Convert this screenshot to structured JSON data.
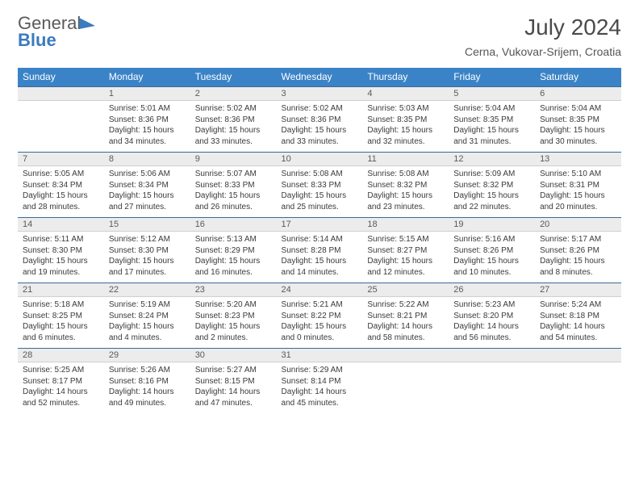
{
  "logo": {
    "line1": "General",
    "line2": "Blue"
  },
  "title": "July 2024",
  "location": "Cerna, Vukovar-Srijem, Croatia",
  "colors": {
    "header_bg": "#3b83c7",
    "header_text": "#ffffff",
    "daynum_bg": "#ececec",
    "border_top": "#3b6a94",
    "text": "#3a3a3a",
    "logo_blue": "#3b7bbf",
    "logo_gray": "#5a5a5a"
  },
  "dow": [
    "Sunday",
    "Monday",
    "Tuesday",
    "Wednesday",
    "Thursday",
    "Friday",
    "Saturday"
  ],
  "weeks": [
    {
      "nums": [
        "",
        "1",
        "2",
        "3",
        "4",
        "5",
        "6"
      ],
      "cells": [
        "",
        "Sunrise: 5:01 AM\nSunset: 8:36 PM\nDaylight: 15 hours and 34 minutes.",
        "Sunrise: 5:02 AM\nSunset: 8:36 PM\nDaylight: 15 hours and 33 minutes.",
        "Sunrise: 5:02 AM\nSunset: 8:36 PM\nDaylight: 15 hours and 33 minutes.",
        "Sunrise: 5:03 AM\nSunset: 8:35 PM\nDaylight: 15 hours and 32 minutes.",
        "Sunrise: 5:04 AM\nSunset: 8:35 PM\nDaylight: 15 hours and 31 minutes.",
        "Sunrise: 5:04 AM\nSunset: 8:35 PM\nDaylight: 15 hours and 30 minutes."
      ]
    },
    {
      "nums": [
        "7",
        "8",
        "9",
        "10",
        "11",
        "12",
        "13"
      ],
      "cells": [
        "Sunrise: 5:05 AM\nSunset: 8:34 PM\nDaylight: 15 hours and 28 minutes.",
        "Sunrise: 5:06 AM\nSunset: 8:34 PM\nDaylight: 15 hours and 27 minutes.",
        "Sunrise: 5:07 AM\nSunset: 8:33 PM\nDaylight: 15 hours and 26 minutes.",
        "Sunrise: 5:08 AM\nSunset: 8:33 PM\nDaylight: 15 hours and 25 minutes.",
        "Sunrise: 5:08 AM\nSunset: 8:32 PM\nDaylight: 15 hours and 23 minutes.",
        "Sunrise: 5:09 AM\nSunset: 8:32 PM\nDaylight: 15 hours and 22 minutes.",
        "Sunrise: 5:10 AM\nSunset: 8:31 PM\nDaylight: 15 hours and 20 minutes."
      ]
    },
    {
      "nums": [
        "14",
        "15",
        "16",
        "17",
        "18",
        "19",
        "20"
      ],
      "cells": [
        "Sunrise: 5:11 AM\nSunset: 8:30 PM\nDaylight: 15 hours and 19 minutes.",
        "Sunrise: 5:12 AM\nSunset: 8:30 PM\nDaylight: 15 hours and 17 minutes.",
        "Sunrise: 5:13 AM\nSunset: 8:29 PM\nDaylight: 15 hours and 16 minutes.",
        "Sunrise: 5:14 AM\nSunset: 8:28 PM\nDaylight: 15 hours and 14 minutes.",
        "Sunrise: 5:15 AM\nSunset: 8:27 PM\nDaylight: 15 hours and 12 minutes.",
        "Sunrise: 5:16 AM\nSunset: 8:26 PM\nDaylight: 15 hours and 10 minutes.",
        "Sunrise: 5:17 AM\nSunset: 8:26 PM\nDaylight: 15 hours and 8 minutes."
      ]
    },
    {
      "nums": [
        "21",
        "22",
        "23",
        "24",
        "25",
        "26",
        "27"
      ],
      "cells": [
        "Sunrise: 5:18 AM\nSunset: 8:25 PM\nDaylight: 15 hours and 6 minutes.",
        "Sunrise: 5:19 AM\nSunset: 8:24 PM\nDaylight: 15 hours and 4 minutes.",
        "Sunrise: 5:20 AM\nSunset: 8:23 PM\nDaylight: 15 hours and 2 minutes.",
        "Sunrise: 5:21 AM\nSunset: 8:22 PM\nDaylight: 15 hours and 0 minutes.",
        "Sunrise: 5:22 AM\nSunset: 8:21 PM\nDaylight: 14 hours and 58 minutes.",
        "Sunrise: 5:23 AM\nSunset: 8:20 PM\nDaylight: 14 hours and 56 minutes.",
        "Sunrise: 5:24 AM\nSunset: 8:18 PM\nDaylight: 14 hours and 54 minutes."
      ]
    },
    {
      "nums": [
        "28",
        "29",
        "30",
        "31",
        "",
        "",
        ""
      ],
      "cells": [
        "Sunrise: 5:25 AM\nSunset: 8:17 PM\nDaylight: 14 hours and 52 minutes.",
        "Sunrise: 5:26 AM\nSunset: 8:16 PM\nDaylight: 14 hours and 49 minutes.",
        "Sunrise: 5:27 AM\nSunset: 8:15 PM\nDaylight: 14 hours and 47 minutes.",
        "Sunrise: 5:29 AM\nSunset: 8:14 PM\nDaylight: 14 hours and 45 minutes.",
        "",
        "",
        ""
      ]
    }
  ]
}
